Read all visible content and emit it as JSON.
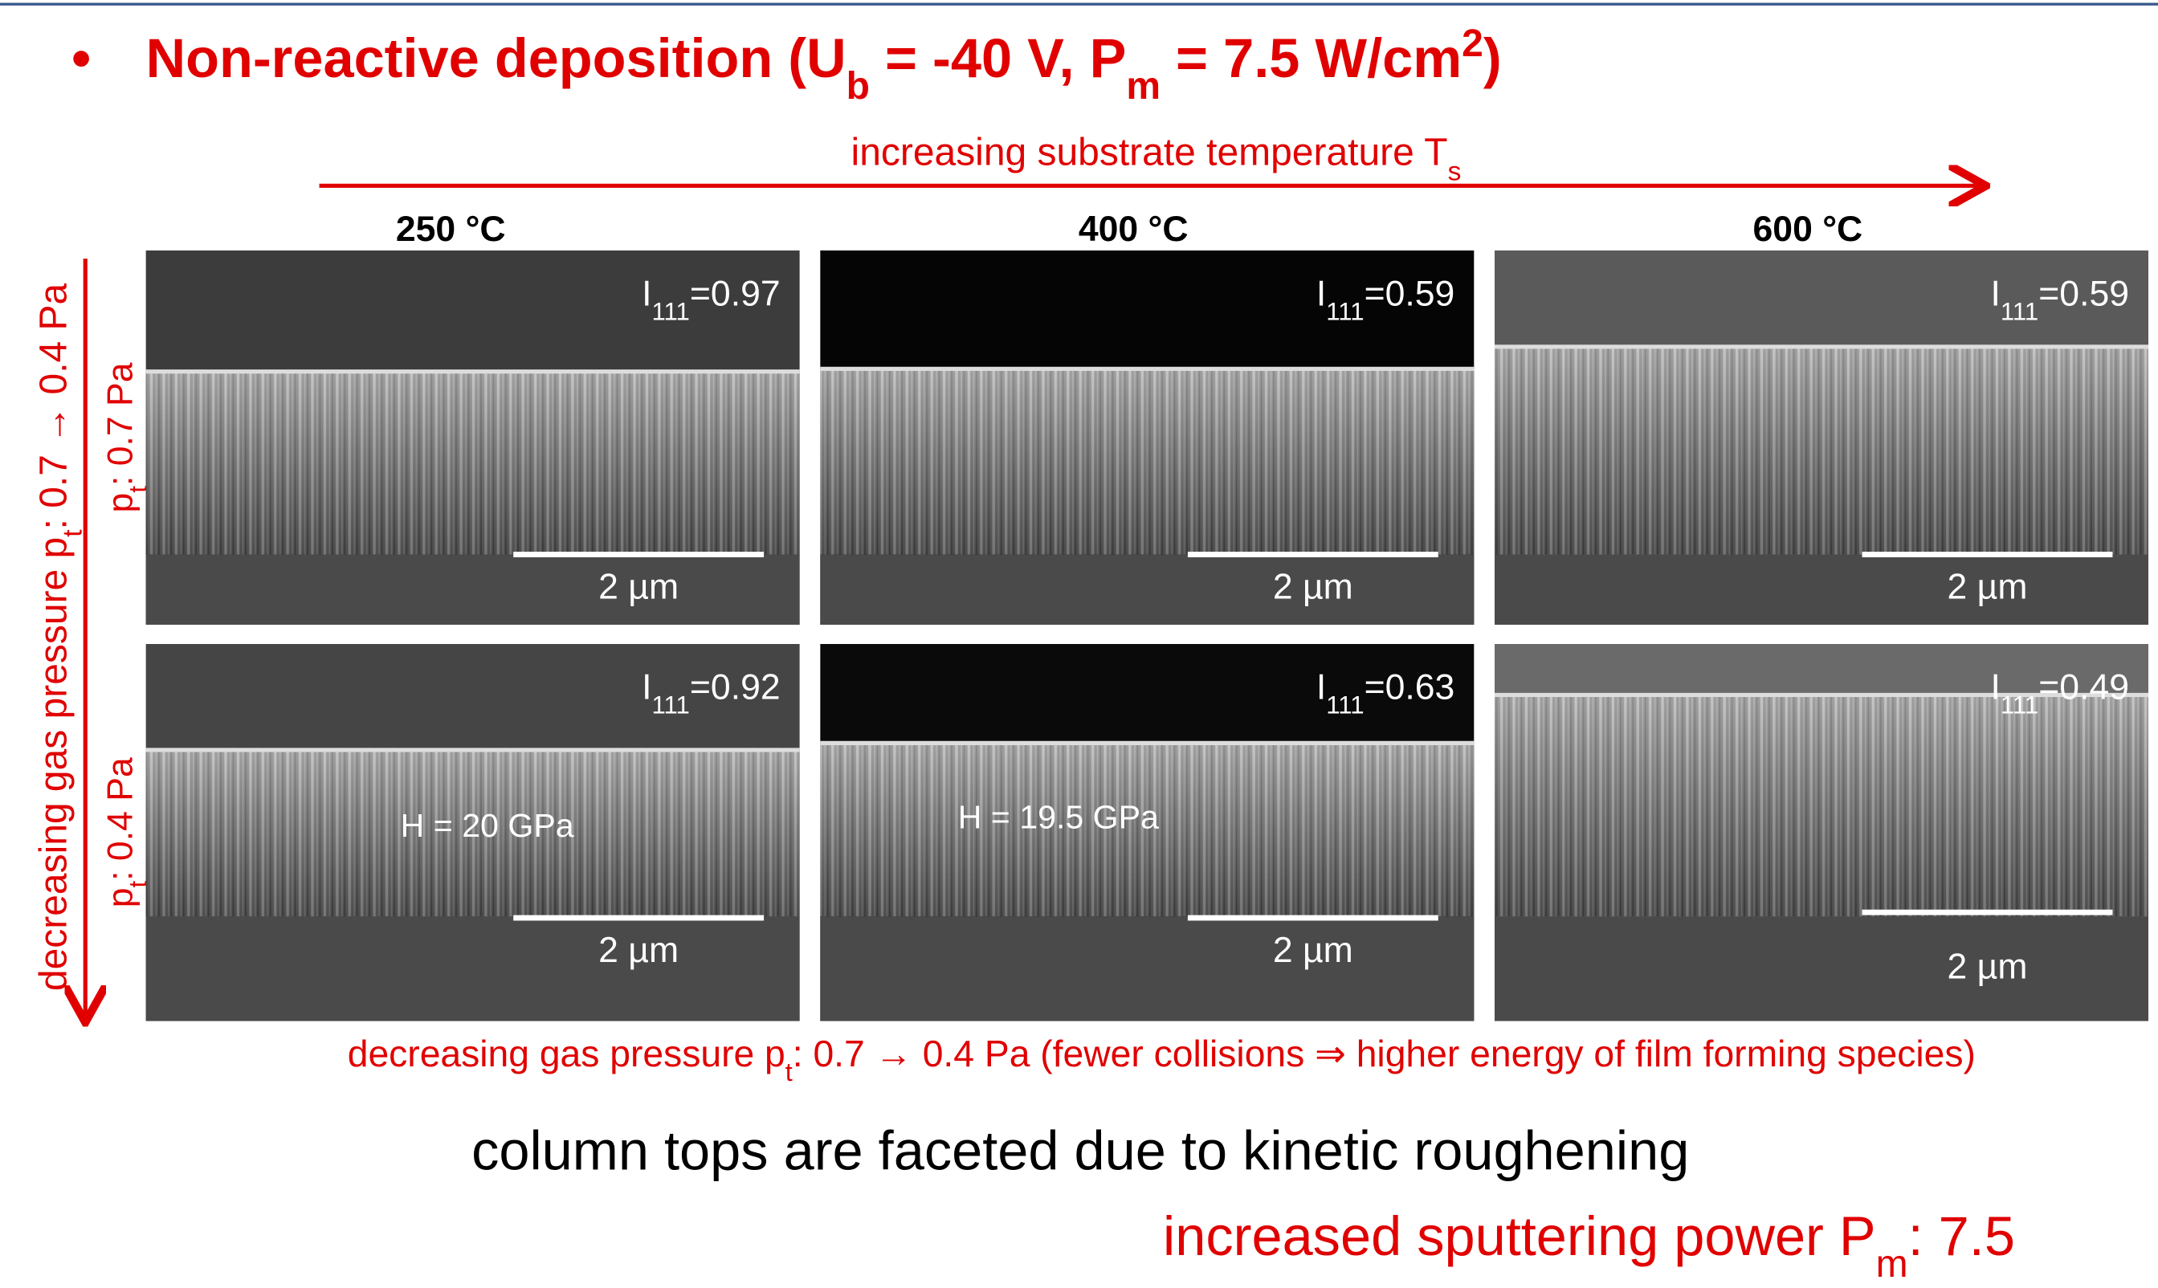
{
  "title": {
    "bullet": "•",
    "parts": [
      "Non-reactive deposition (U",
      "b",
      " = -40 V, P",
      "m",
      " = 7.5 W/cm",
      "2",
      ")"
    ]
  },
  "top_arrow_label": [
    "increasing substrate temperature T",
    "s"
  ],
  "columns": [
    "250 °C",
    "400 °C",
    "600 °C"
  ],
  "left_arrow_label": [
    "decreasing gas pressure p",
    "t",
    ": 0.7 → 0.4 Pa"
  ],
  "rows": [
    [
      "p",
      "t",
      ": 0.7 Pa"
    ],
    [
      "p",
      "t",
      ": 0.4 Pa"
    ]
  ],
  "panels": [
    [
      {
        "intensity": [
          "I",
          "111",
          "=0.97"
        ],
        "scale": "2 µm"
      },
      {
        "intensity": [
          "I",
          "111",
          "=0.59"
        ],
        "scale": "2 µm"
      },
      {
        "intensity": [
          "I",
          "111",
          "=0.59"
        ],
        "scale": "2 µm"
      }
    ],
    [
      {
        "intensity": [
          "I",
          "111",
          "=0.92"
        ],
        "hardness": "H = 20 GPa",
        "scale": "2 µm"
      },
      {
        "intensity": [
          "I",
          "111",
          "=0.63"
        ],
        "hardness": "H = 19.5 GPa",
        "scale": "2 µm"
      },
      {
        "intensity": [
          "I",
          "111",
          "=0.49"
        ],
        "scale": "2 µm"
      }
    ]
  ],
  "footer": [
    "decreasing gas pressure p",
    "t",
    ": 0.7 → 0.4 Pa (fewer collisions ⇒ higher energy of film forming species)"
  ],
  "conclusion": "column tops are faceted due to kinetic roughening",
  "bottom_note": [
    "increased sputtering power P",
    "m",
    ": 7.5"
  ]
}
